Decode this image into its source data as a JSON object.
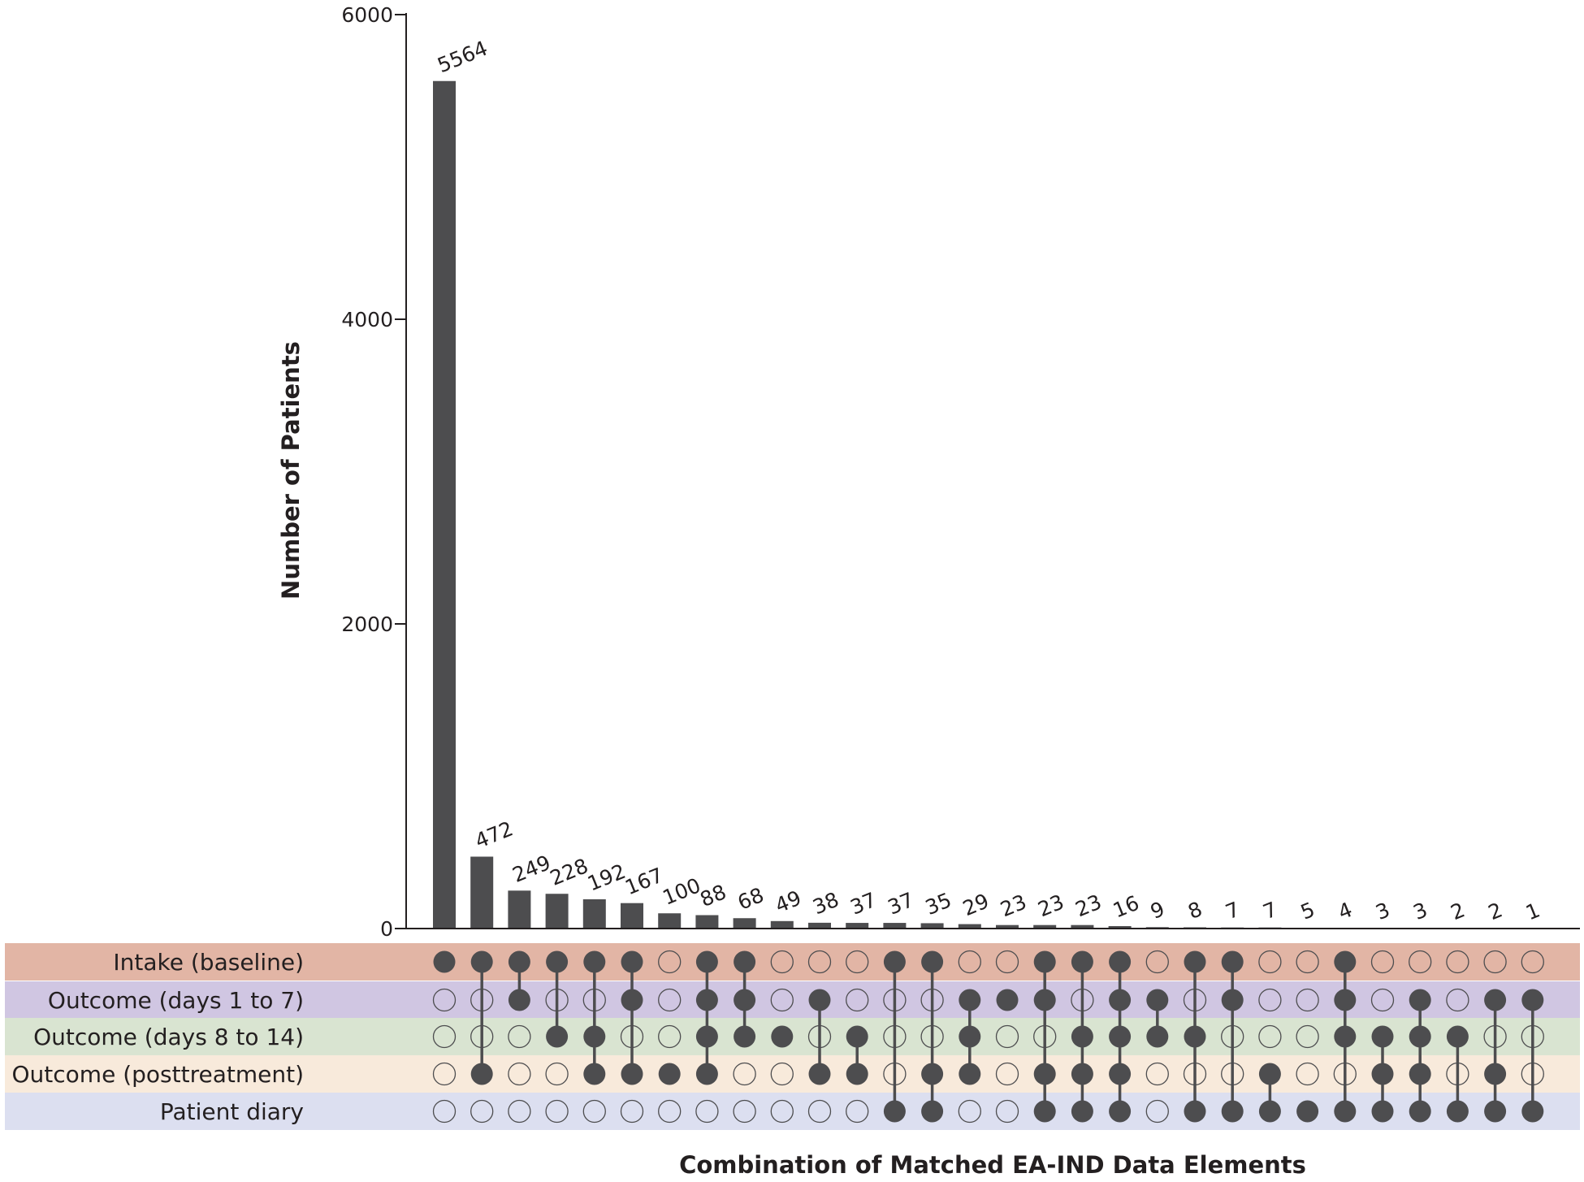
{
  "chart_data": {
    "type": "bar",
    "subtype": "upset",
    "ylabel": "Number of Patients",
    "xlabel": "Combination of Matched EA-IND Data Elements",
    "ylim": [
      0,
      6000
    ],
    "yticks": [
      "0",
      "2000",
      "4000",
      "6000"
    ],
    "grid": false,
    "colors": {
      "bar": "#4d4d4f",
      "dot": "#4d4d4f",
      "axis": "#231f20",
      "rows": [
        "#e2b5a5",
        "#d0c6e2",
        "#d9e4d1",
        "#f8eadb",
        "#dcdff0"
      ]
    },
    "sets": [
      "Intake (baseline)",
      "Outcome (days 1 to 7)",
      "Outcome (days 8 to 14)",
      "Outcome (posttreatment)",
      "Patient diary"
    ],
    "values": [
      5564,
      472,
      249,
      228,
      192,
      167,
      100,
      88,
      68,
      49,
      38,
      37,
      37,
      35,
      29,
      23,
      23,
      23,
      16,
      9,
      8,
      7,
      7,
      5,
      4,
      3,
      3,
      2,
      2,
      1
    ],
    "value_labels": [
      "5564",
      "472",
      "249",
      "228",
      "192",
      "167",
      "100",
      "88",
      "68",
      "49",
      "38",
      "37",
      "37",
      "35",
      "29",
      "23",
      "23",
      "23",
      "16",
      "9",
      "8",
      "7",
      "7",
      "5",
      "4",
      "3",
      "3",
      "2",
      "2",
      "1"
    ],
    "combinations": [
      [
        1,
        0,
        0,
        0,
        0
      ],
      [
        1,
        0,
        0,
        1,
        0
      ],
      [
        1,
        1,
        0,
        0,
        0
      ],
      [
        1,
        0,
        1,
        0,
        0
      ],
      [
        1,
        0,
        1,
        1,
        0
      ],
      [
        1,
        1,
        0,
        1,
        0
      ],
      [
        0,
        0,
        0,
        1,
        0
      ],
      [
        1,
        1,
        1,
        1,
        0
      ],
      [
        1,
        1,
        1,
        0,
        0
      ],
      [
        0,
        0,
        1,
        0,
        0
      ],
      [
        0,
        1,
        0,
        1,
        0
      ],
      [
        0,
        0,
        1,
        1,
        0
      ],
      [
        1,
        0,
        0,
        0,
        1
      ],
      [
        1,
        0,
        0,
        1,
        1
      ],
      [
        0,
        1,
        1,
        1,
        0
      ],
      [
        0,
        1,
        0,
        0,
        0
      ],
      [
        1,
        1,
        0,
        1,
        1
      ],
      [
        1,
        0,
        1,
        1,
        1
      ],
      [
        1,
        1,
        1,
        1,
        1
      ],
      [
        0,
        1,
        1,
        0,
        0
      ],
      [
        1,
        0,
        1,
        0,
        1
      ],
      [
        1,
        1,
        0,
        0,
        1
      ],
      [
        0,
        0,
        0,
        1,
        1
      ],
      [
        0,
        0,
        0,
        0,
        1
      ],
      [
        1,
        1,
        1,
        0,
        1
      ],
      [
        0,
        0,
        1,
        1,
        1
      ],
      [
        0,
        1,
        1,
        1,
        1
      ],
      [
        0,
        0,
        1,
        0,
        1
      ],
      [
        0,
        1,
        0,
        1,
        1
      ],
      [
        0,
        1,
        0,
        0,
        1
      ]
    ]
  }
}
